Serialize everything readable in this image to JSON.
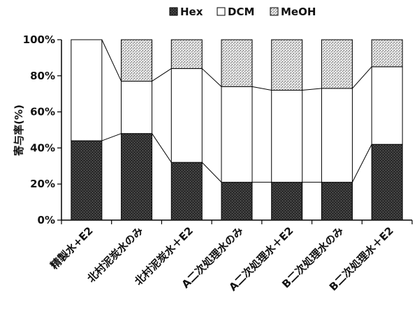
{
  "chart_data": {
    "type": "bar",
    "stacked": true,
    "ylabel": "寄与率(%)",
    "ylim": [
      0,
      100
    ],
    "yticks": [
      "0%",
      "20%",
      "40%",
      "60%",
      "80%",
      "100%"
    ],
    "grid": false,
    "legend_position": "top",
    "categories": [
      "精製水+E2",
      "北村泥炭水のみ",
      "北村泥炭水＋E2",
      "A二次処理水のみ",
      "A二次処理水＋E2",
      "B二次処理水のみ",
      "B二次処理水＋E2"
    ],
    "series": [
      {
        "name": "Hex",
        "values": [
          44,
          48,
          32,
          21,
          21,
          21,
          42
        ],
        "fill": "#3a3a3a"
      },
      {
        "name": "DCM",
        "values": [
          56,
          29,
          52,
          53,
          51,
          52,
          43
        ],
        "fill": "#ffffff"
      },
      {
        "name": "MeOH",
        "values": [
          0,
          23,
          16,
          26,
          28,
          27,
          15
        ],
        "fill": "#d4d4d4"
      }
    ],
    "connector_lines": true
  }
}
